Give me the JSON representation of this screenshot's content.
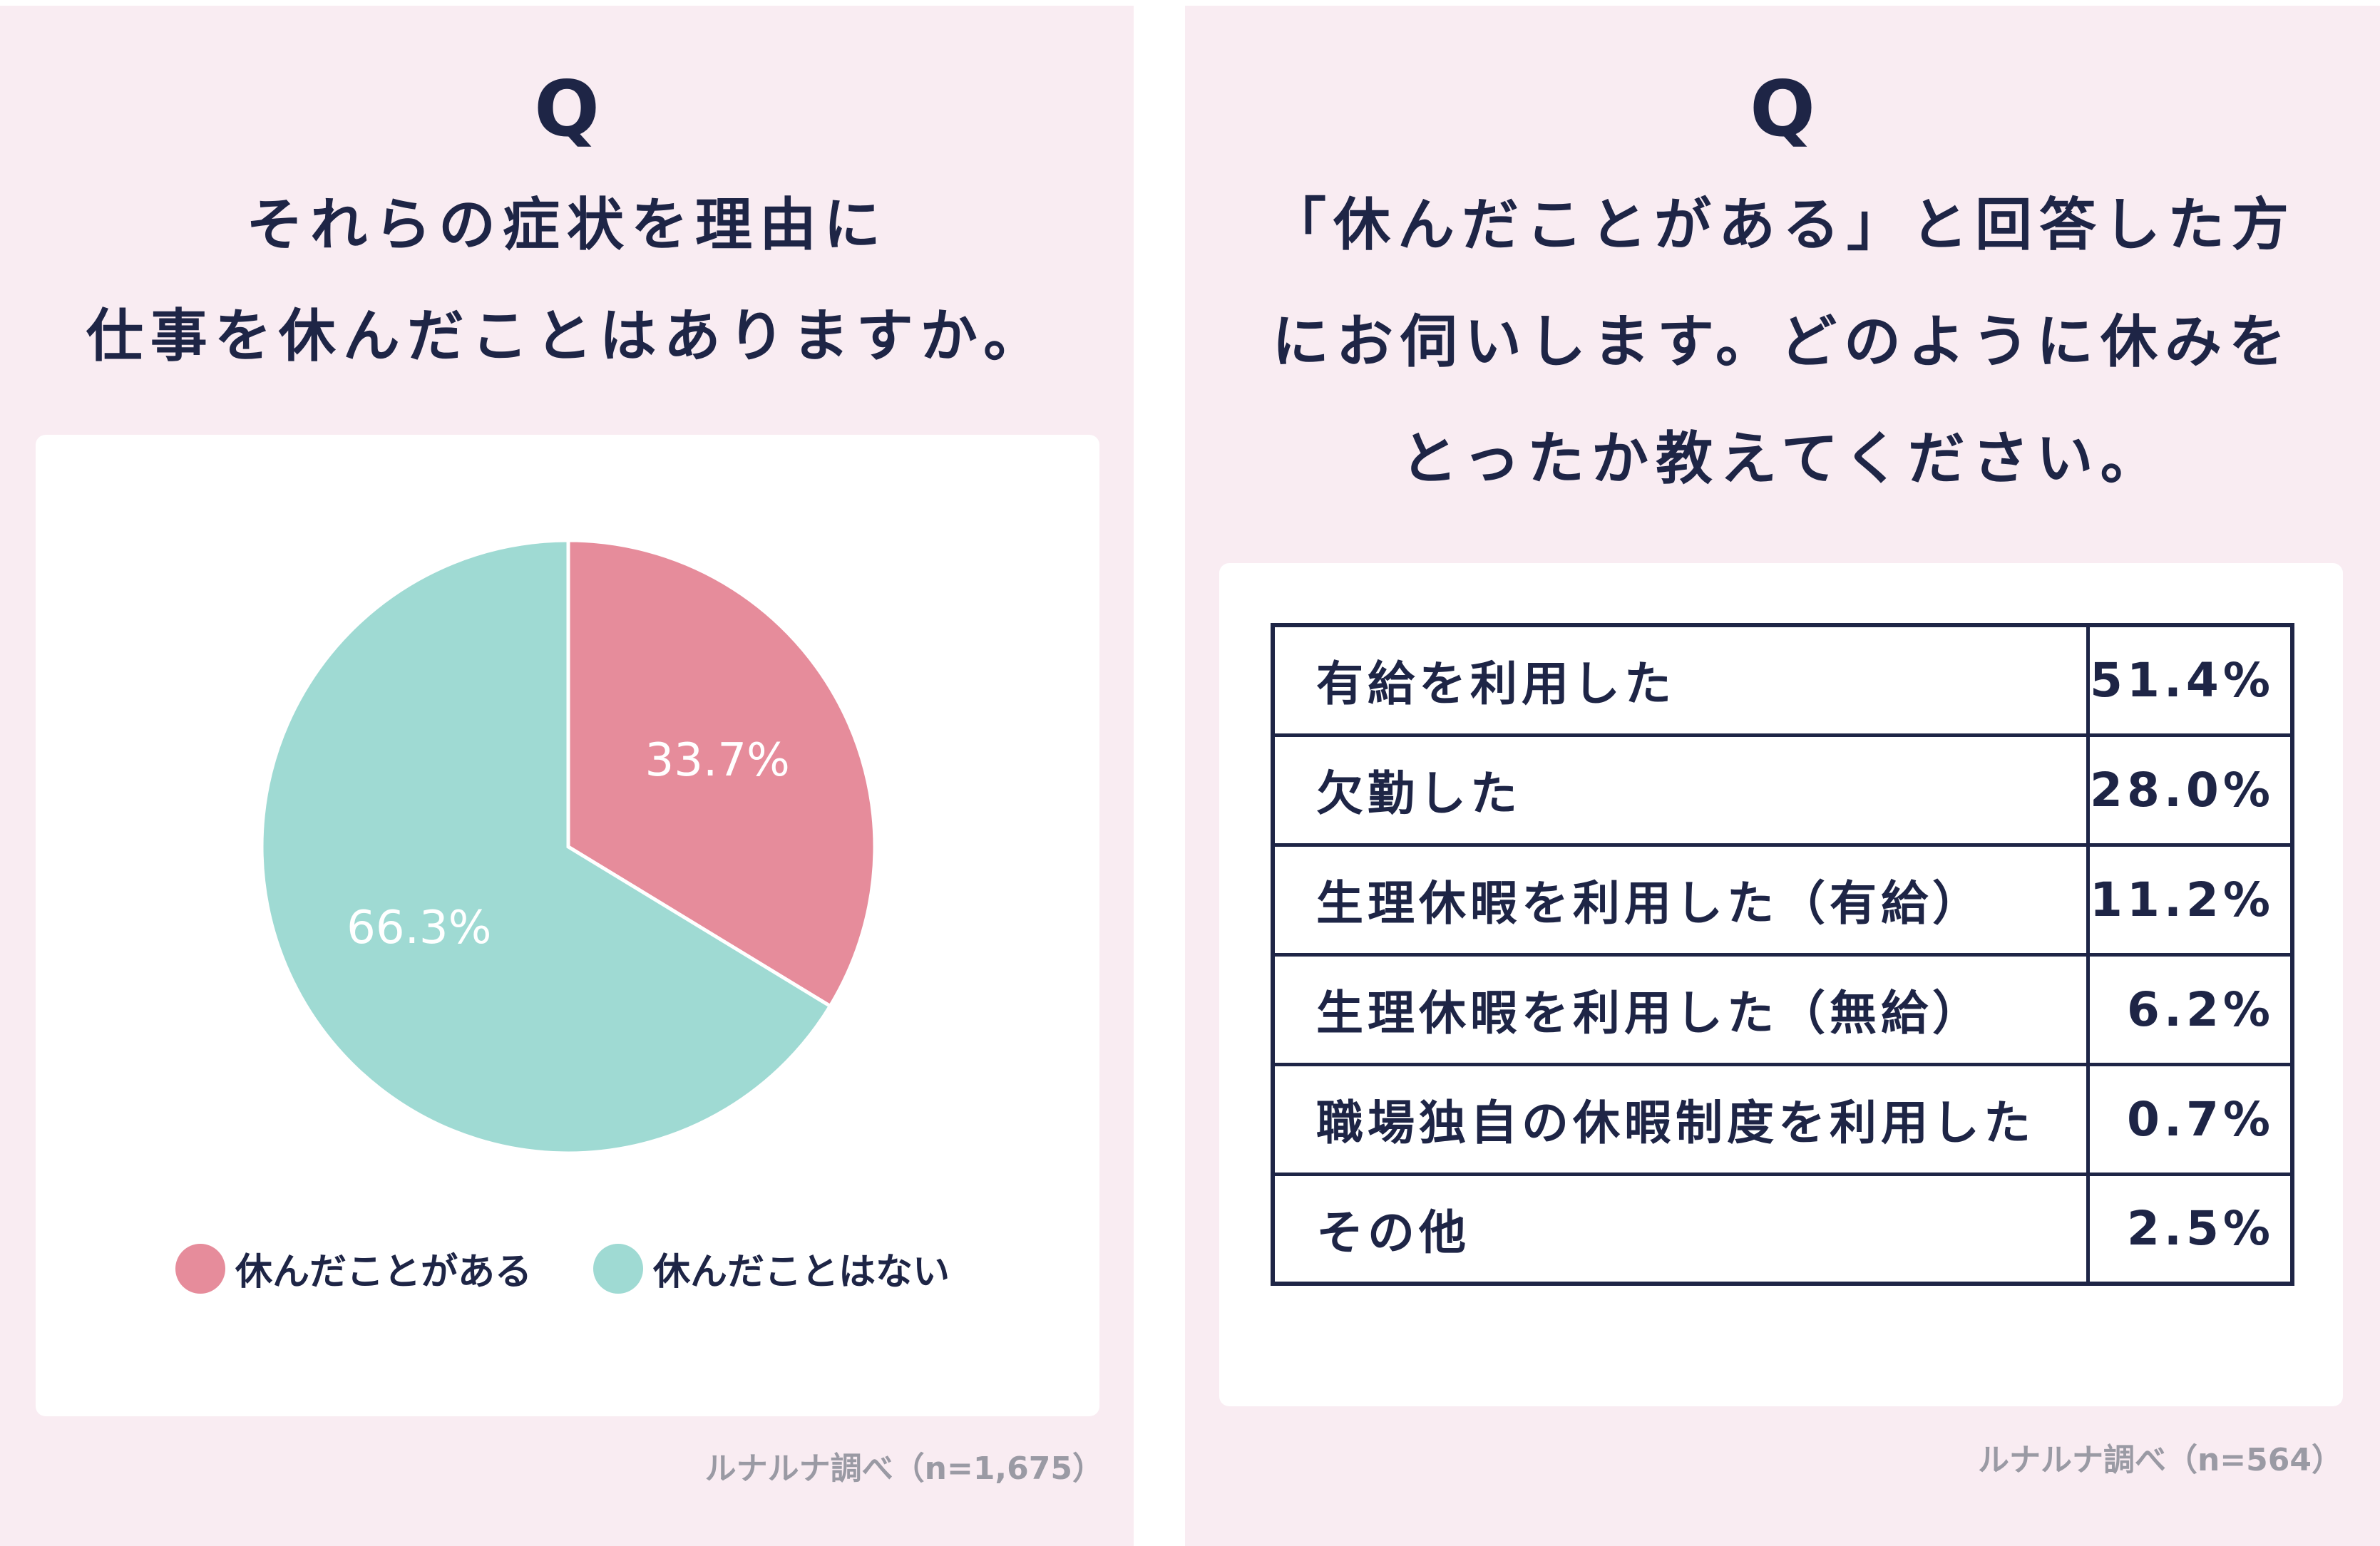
{
  "left": {
    "q_mark": "Q",
    "question_lines": [
      "それらの症状を理由に",
      "仕事を休んだことはありますか。"
    ],
    "source": "ルナルナ調べ（n=1,675）"
  },
  "right": {
    "q_mark": "Q",
    "question_lines": [
      "「休んだことがある」と回答した方",
      "にお伺いします。どのように休みを",
      "とったか教えてください。"
    ],
    "source": "ルナルナ調べ（n=564）"
  },
  "colors": {
    "panel_bg": "#f9ecf2",
    "text": "#1e2546",
    "pie_pink": "#e68c9b",
    "pie_teal": "#9fdad3"
  },
  "chart_data": [
    {
      "type": "pie",
      "slices": [
        {
          "label": "休んだことがある",
          "value": 33.7,
          "display": "33.7%",
          "color": "#e68c9b"
        },
        {
          "label": "休んだことはない",
          "value": 66.3,
          "display": "66.3%",
          "color": "#9fdad3"
        }
      ],
      "start_angle": "12 o'clock",
      "direction": "clockwise",
      "legend": "bottom"
    },
    {
      "type": "table",
      "rows": [
        {
          "label": "有給を利用した",
          "value": "51.4%"
        },
        {
          "label": "欠勤した",
          "value": "28.0%"
        },
        {
          "label": "生理休暇を利用した（有給）",
          "value": "11.2%"
        },
        {
          "label": "生理休暇を利用した（無給）",
          "value": "6.2%"
        },
        {
          "label": "職場独自の休暇制度を利用した",
          "value": "0.7%"
        },
        {
          "label": "その他",
          "value": "2.5%"
        }
      ]
    }
  ]
}
